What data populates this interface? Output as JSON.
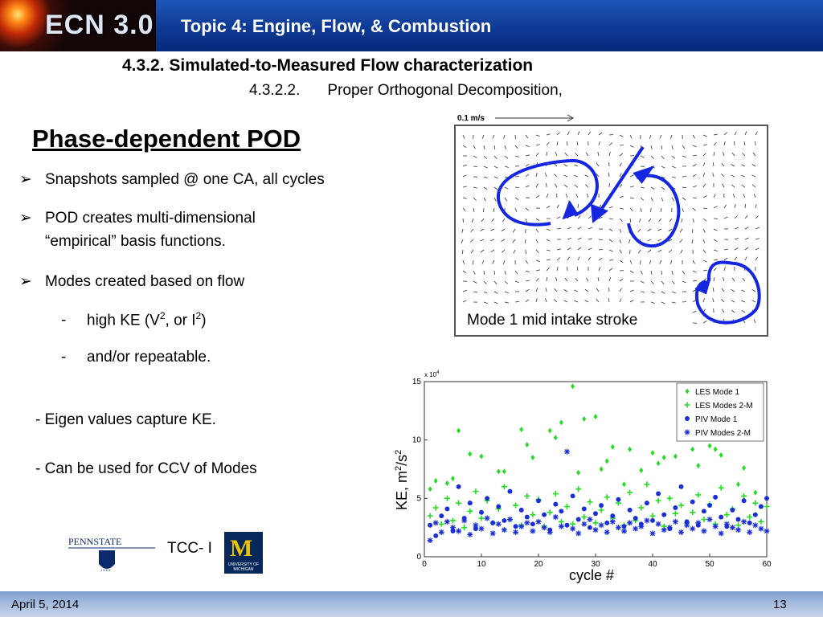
{
  "header": {
    "logo_text": "ECN 3.0",
    "topic": "Topic 4:  Engine, Flow, & Combustion"
  },
  "section": "4.3.2.   Simulated-to-Measured Flow characterization",
  "subsection": {
    "number": "4.3.2.2.",
    "title": "Proper Orthogonal Decomposition,"
  },
  "slide_title": "Phase-dependent POD",
  "bullets": [
    "Snapshots sampled @ one CA, all  cycles",
    "POD creates multi-dimensional",
    "Modes created based on flow"
  ],
  "bullet2_cont": "“empirical” basis functions.",
  "sub_items": {
    "item1_pre": "high KE (V",
    "item1_sup1": "2",
    "item1_mid": ", or I",
    "item1_sup2": "2",
    "item1_post": ")",
    "item2": "and/or  repeatable."
  },
  "notes": [
    "-  Eigen values capture KE.",
    "-  Can be used for CCV of Modes"
  ],
  "vector_figure": {
    "scale_label": "0.1 m/s",
    "caption": "Mode 1  mid intake stroke"
  },
  "chart_data": {
    "type": "scatter",
    "exponent_label": "x 10",
    "exponent_power": "4",
    "ylabel_text": "KE,  m",
    "ylabel_sup1": "2",
    "ylabel_mid": "/s",
    "ylabel_sup2": "2",
    "xlabel": "cycle #",
    "xlim": [
      0,
      60
    ],
    "ylim": [
      0,
      15
    ],
    "xticks": [
      "0",
      "10",
      "20",
      "30",
      "40",
      "50",
      "60"
    ],
    "yticks": [
      "0",
      "5",
      "10",
      "15"
    ],
    "legend_position": "top-right",
    "series": [
      {
        "name": "LES Mode 1",
        "color": "#22dd22",
        "marker": "diamond",
        "x": [
          1,
          2,
          4,
          5,
          6,
          8,
          10,
          13,
          14,
          17,
          18,
          19,
          22,
          23,
          24,
          26,
          27,
          28,
          30,
          31,
          32,
          33,
          35,
          36,
          38,
          40,
          41,
          42,
          44,
          45,
          47,
          48,
          50,
          51,
          52,
          55,
          56,
          58
        ],
        "y": [
          5.8,
          6.5,
          6.3,
          6.7,
          10.8,
          8.8,
          8.6,
          7.3,
          7.3,
          10.9,
          9.6,
          8.5,
          10.8,
          10.2,
          11.5,
          14.6,
          7.2,
          11.8,
          12.0,
          7.5,
          8.2,
          9.4,
          6.2,
          9.2,
          7.4,
          8.9,
          8.0,
          8.5,
          8.6,
          6.0,
          9.2,
          7.8,
          9.5,
          9.2,
          8.7,
          6.2,
          7.6,
          5.5
        ]
      },
      {
        "name": "LES Modes 2-M",
        "color": "#22dd22",
        "marker": "plus",
        "x": [
          1,
          2,
          3,
          4,
          5,
          6,
          7,
          8,
          9,
          10,
          11,
          12,
          13,
          14,
          15,
          16,
          17,
          18,
          19,
          20,
          21,
          22,
          23,
          24,
          25,
          26,
          27,
          28,
          29,
          30,
          31,
          32,
          33,
          34,
          35,
          36,
          37,
          38,
          39,
          40,
          41,
          42,
          43,
          44,
          45,
          46,
          47,
          48,
          49,
          50,
          51,
          52,
          53,
          54,
          55,
          56,
          57,
          58,
          59,
          60
        ],
        "y": [
          3.5,
          4.2,
          2.8,
          5.0,
          3.1,
          4.6,
          2.5,
          3.9,
          5.6,
          3.3,
          4.8,
          2.9,
          4.1,
          6.0,
          3.2,
          4.4,
          2.7,
          5.2,
          3.6,
          4.9,
          2.6,
          3.8,
          5.4,
          3.0,
          4.3,
          2.8,
          5.8,
          3.4,
          4.7,
          2.9,
          4.0,
          5.1,
          3.3,
          4.6,
          2.7,
          5.5,
          3.1,
          4.2,
          6.2,
          3.5,
          4.8,
          2.6,
          5.0,
          3.7,
          4.4,
          2.9,
          3.8,
          5.3,
          3.2,
          4.5,
          2.8,
          5.9,
          3.6,
          4.1,
          2.7,
          5.2,
          3.4,
          4.6,
          3.0,
          4.3
        ]
      },
      {
        "name": "PIV Mode 1",
        "color": "#1a2ed8",
        "marker": "circle",
        "x": [
          1,
          2,
          3,
          4,
          5,
          6,
          7,
          8,
          9,
          10,
          11,
          12,
          13,
          14,
          15,
          16,
          17,
          18,
          19,
          20,
          21,
          22,
          23,
          24,
          25,
          26,
          27,
          28,
          29,
          30,
          31,
          32,
          33,
          34,
          35,
          36,
          37,
          38,
          39,
          40,
          41,
          42,
          43,
          44,
          45,
          46,
          47,
          48,
          49,
          50,
          51,
          52,
          53,
          54,
          55,
          56,
          57,
          58,
          59,
          60
        ],
        "y": [
          2.7,
          1.8,
          3.5,
          4.1,
          2.2,
          6.0,
          3.3,
          4.6,
          2.4,
          3.8,
          5.0,
          2.9,
          4.3,
          3.1,
          5.6,
          2.6,
          4.0,
          3.4,
          2.8,
          4.8,
          3.6,
          2.3,
          4.5,
          3.9,
          2.7,
          5.2,
          3.2,
          4.1,
          2.5,
          3.7,
          4.4,
          2.9,
          3.5,
          4.9,
          2.6,
          4.0,
          3.3,
          2.8,
          4.6,
          3.1,
          5.4,
          3.6,
          2.4,
          4.2,
          6.0,
          3.0,
          4.7,
          2.7,
          3.9,
          4.4,
          5.1,
          3.4,
          2.6,
          4.0,
          3.2,
          4.8,
          2.9,
          3.6,
          4.3,
          5.0
        ]
      },
      {
        "name": "PIV Modes 2-M",
        "color": "#1a2ed8",
        "marker": "star",
        "x": [
          1,
          2,
          3,
          4,
          5,
          6,
          7,
          8,
          9,
          10,
          11,
          12,
          13,
          14,
          15,
          16,
          17,
          18,
          19,
          20,
          21,
          22,
          23,
          24,
          25,
          26,
          27,
          28,
          29,
          30,
          31,
          32,
          33,
          34,
          35,
          36,
          37,
          38,
          39,
          40,
          41,
          42,
          43,
          44,
          45,
          46,
          47,
          48,
          49,
          50,
          51,
          52,
          53,
          54,
          55,
          56,
          57,
          58,
          59,
          60
        ],
        "y": [
          1.4,
          2.9,
          2.1,
          3.0,
          2.5,
          2.2,
          3.1,
          1.9,
          2.7,
          2.4,
          3.3,
          2.0,
          2.8,
          2.3,
          3.2,
          2.1,
          2.6,
          2.9,
          2.2,
          3.0,
          2.5,
          2.1,
          3.4,
          2.6,
          9.0,
          2.4,
          2.0,
          2.8,
          3.2,
          2.3,
          2.7,
          2.1,
          3.0,
          2.5,
          2.2,
          2.9,
          2.4,
          2.6,
          3.1,
          2.0,
          2.8,
          2.3,
          2.5,
          3.0,
          2.1,
          2.7,
          2.4,
          2.9,
          2.2,
          3.2,
          2.6,
          2.0,
          2.8,
          2.5,
          2.3,
          3.0,
          2.1,
          2.7,
          2.4,
          2.2
        ]
      }
    ]
  },
  "logos": {
    "pennstate_text": "PENNSTATE",
    "pennstate_year": "1 8 5 5",
    "um_letter": "M",
    "um_line1": "UNIVERSITY OF",
    "um_line2": "MICHIGAN"
  },
  "tcc_label": "TCC- I",
  "footer": {
    "date": "April 5, 2014",
    "page": "13"
  }
}
